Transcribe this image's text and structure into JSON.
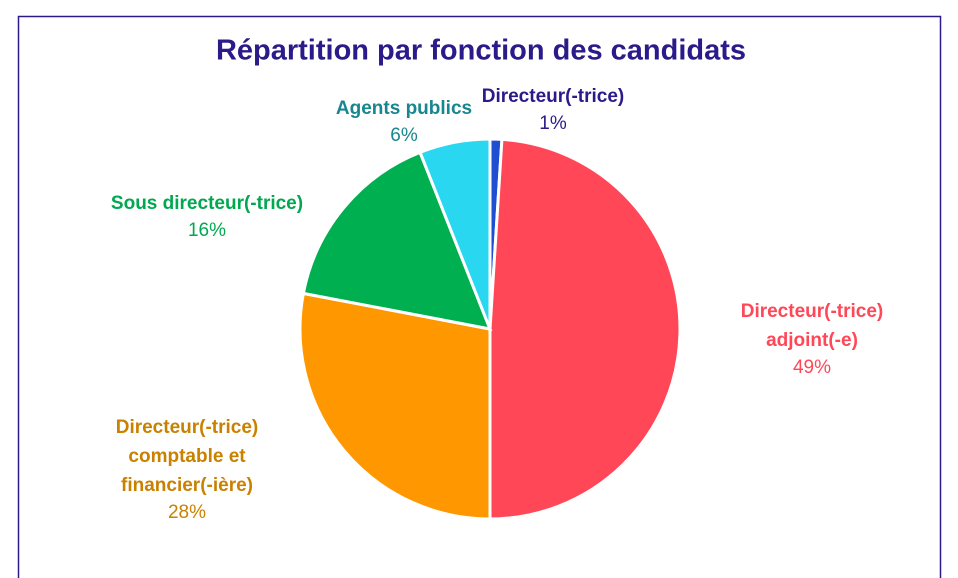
{
  "chart_data": {
    "type": "pie",
    "title": "Répartition par fonction des candidats",
    "categories": [
      "Directeur(-trice)",
      "Directeur(-trice) adjoint(-e)",
      "Directeur(-trice) comptable et financier(-ière)",
      "Sous directeur(-trice)",
      "Agents publics"
    ],
    "values": [
      1,
      49,
      28,
      16,
      6
    ],
    "value_labels": [
      "1%",
      "49%",
      "28%",
      "16%",
      "6%"
    ],
    "colors": [
      "#1f4fd1",
      "#ff4757",
      "#ff9800",
      "#00b050",
      "#29d8f0"
    ],
    "label_colors": [
      "#2a1a8a",
      "#ff4757",
      "#c98100",
      "#00a850",
      "#17868f"
    ]
  }
}
